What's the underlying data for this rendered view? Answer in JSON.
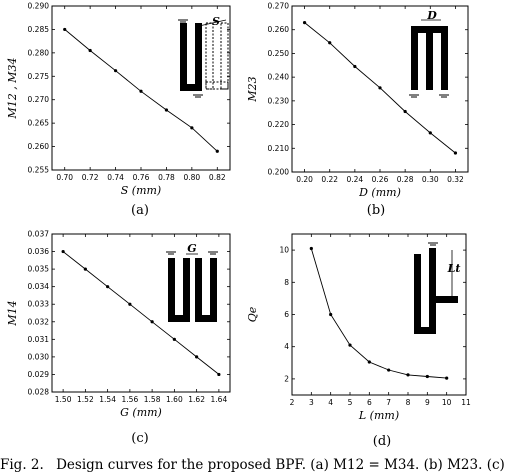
{
  "chart_data": [
    {
      "id": "a",
      "type": "line",
      "panel_label": "(a)",
      "xlabel": "S (mm)",
      "ylabel": "M12 , M34",
      "xlim": [
        0.69,
        0.83
      ],
      "ylim": [
        0.255,
        0.29
      ],
      "xticks": [
        0.7,
        0.72,
        0.74,
        0.76,
        0.78,
        0.8,
        0.82
      ],
      "yticks": [
        0.255,
        0.26,
        0.265,
        0.27,
        0.275,
        0.28,
        0.285,
        0.29
      ],
      "x": [
        0.7,
        0.72,
        0.74,
        0.76,
        0.78,
        0.8,
        0.82
      ],
      "y": [
        0.285,
        0.2805,
        0.2762,
        0.2718,
        0.2678,
        0.264,
        0.259
      ],
      "inset_label": "S"
    },
    {
      "id": "b",
      "type": "line",
      "panel_label": "(b)",
      "xlabel": "D (mm)",
      "ylabel": "M23",
      "xlim": [
        0.19,
        0.33
      ],
      "ylim": [
        0.2,
        0.27
      ],
      "xticks": [
        0.2,
        0.22,
        0.24,
        0.26,
        0.28,
        0.3,
        0.32
      ],
      "yticks": [
        0.2,
        0.21,
        0.22,
        0.23,
        0.24,
        0.25,
        0.26,
        0.27
      ],
      "x": [
        0.2,
        0.22,
        0.24,
        0.26,
        0.28,
        0.3,
        0.32
      ],
      "y": [
        0.263,
        0.2545,
        0.2445,
        0.2355,
        0.2255,
        0.2165,
        0.208
      ],
      "inset_label": "D"
    },
    {
      "id": "c",
      "type": "line",
      "panel_label": "(c)",
      "xlabel": "G (mm)",
      "ylabel": "M14",
      "xlim": [
        1.49,
        1.65
      ],
      "ylim": [
        0.028,
        0.037
      ],
      "xticks": [
        1.5,
        1.52,
        1.54,
        1.56,
        1.58,
        1.6,
        1.62,
        1.64
      ],
      "yticks": [
        0.028,
        0.029,
        0.03,
        0.031,
        0.032,
        0.033,
        0.034,
        0.035,
        0.036,
        0.037
      ],
      "x": [
        1.5,
        1.52,
        1.54,
        1.56,
        1.58,
        1.6,
        1.62,
        1.64
      ],
      "y": [
        0.036,
        0.035,
        0.034,
        0.033,
        0.032,
        0.031,
        0.03,
        0.029
      ],
      "inset_label": "G"
    },
    {
      "id": "d",
      "type": "line",
      "panel_label": "(d)",
      "xlabel": "L (mm)",
      "ylabel": "Qe",
      "xlim": [
        2,
        11
      ],
      "ylim": [
        1,
        11
      ],
      "xticks": [
        2,
        3,
        4,
        5,
        6,
        7,
        8,
        9,
        10,
        11
      ],
      "yticks": [
        2,
        4,
        6,
        8,
        10
      ],
      "x": [
        3,
        4,
        5,
        6,
        7,
        8,
        9,
        10
      ],
      "y": [
        10.1,
        6.0,
        4.1,
        3.05,
        2.55,
        2.25,
        2.15,
        2.05
      ],
      "inset_label": "Lt"
    }
  ],
  "caption": {
    "figno": "Fig. 2.",
    "text": "Design curves for the proposed BPF. (a) M12 = M34. (b) M23. (c)"
  }
}
